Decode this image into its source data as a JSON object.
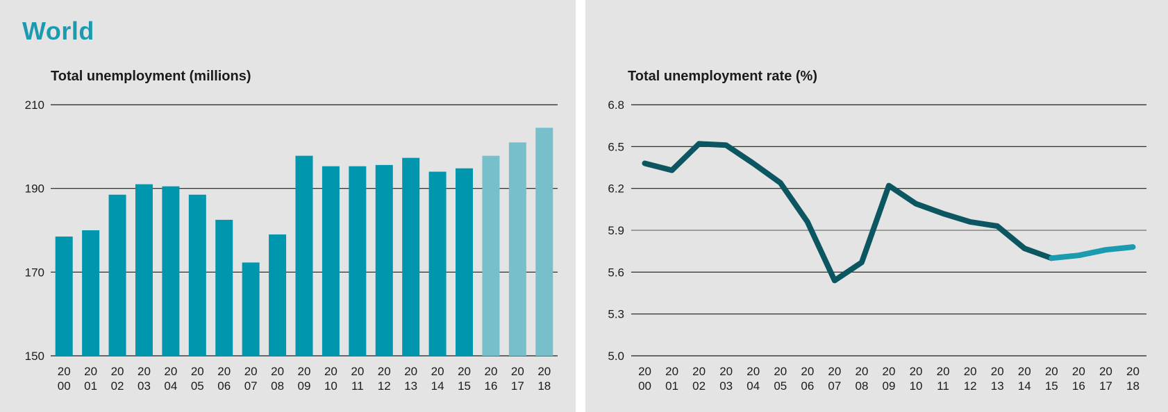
{
  "region_title": "World",
  "colors": {
    "panel_bg": "#e3e4e3",
    "bar_actual": "#0096ad",
    "bar_projected": "#78bfcc",
    "line_actual": "#0b5660",
    "line_projected": "#1a9bb0",
    "reference_line": "#9c9c9c",
    "grid": "#1b1b1b"
  },
  "chart_data": [
    {
      "type": "bar",
      "title": "Total unemployment (millions)",
      "xlabel": "",
      "ylabel": "",
      "ylim": [
        150,
        210
      ],
      "yticks": [
        "210",
        "190",
        "170",
        "150"
      ],
      "categories": [
        [
          "20",
          "00"
        ],
        [
          "20",
          "01"
        ],
        [
          "20",
          "02"
        ],
        [
          "20",
          "03"
        ],
        [
          "20",
          "04"
        ],
        [
          "20",
          "05"
        ],
        [
          "20",
          "06"
        ],
        [
          "20",
          "07"
        ],
        [
          "20",
          "08"
        ],
        [
          "20",
          "09"
        ],
        [
          "20",
          "10"
        ],
        [
          "20",
          "11"
        ],
        [
          "20",
          "12"
        ],
        [
          "20",
          "13"
        ],
        [
          "20",
          "14"
        ],
        [
          "20",
          "15"
        ],
        [
          "20",
          "16"
        ],
        [
          "20",
          "17"
        ],
        [
          "20",
          "18"
        ]
      ],
      "values": [
        178.5,
        180,
        188.5,
        191,
        190.5,
        188.5,
        182.5,
        172.3,
        179,
        197.8,
        195.3,
        195.3,
        195.6,
        197.3,
        194,
        194.8,
        197.8,
        201,
        204.5
      ],
      "projected_from_index": 16,
      "grid": true
    },
    {
      "type": "line",
      "title": "Total unemployment rate (%)",
      "xlabel": "",
      "ylabel": "",
      "ylim": [
        5.0,
        6.8
      ],
      "yticks": [
        "6.8",
        "6.5",
        "6.2",
        "5.9",
        "5.6",
        "5.3",
        "5.0"
      ],
      "categories": [
        [
          "20",
          "00"
        ],
        [
          "20",
          "01"
        ],
        [
          "20",
          "02"
        ],
        [
          "20",
          "03"
        ],
        [
          "20",
          "04"
        ],
        [
          "20",
          "05"
        ],
        [
          "20",
          "06"
        ],
        [
          "20",
          "07"
        ],
        [
          "20",
          "08"
        ],
        [
          "20",
          "09"
        ],
        [
          "20",
          "10"
        ],
        [
          "20",
          "11"
        ],
        [
          "20",
          "12"
        ],
        [
          "20",
          "13"
        ],
        [
          "20",
          "14"
        ],
        [
          "20",
          "15"
        ],
        [
          "20",
          "16"
        ],
        [
          "20",
          "17"
        ],
        [
          "20",
          "18"
        ]
      ],
      "values": [
        6.38,
        6.33,
        6.52,
        6.51,
        6.38,
        6.24,
        5.96,
        5.54,
        5.67,
        6.22,
        6.09,
        6.02,
        5.96,
        5.93,
        5.77,
        5.7,
        5.72,
        5.76,
        5.78
      ],
      "projected_from_index": 15,
      "reference_value": 5.9,
      "grid": true
    }
  ]
}
